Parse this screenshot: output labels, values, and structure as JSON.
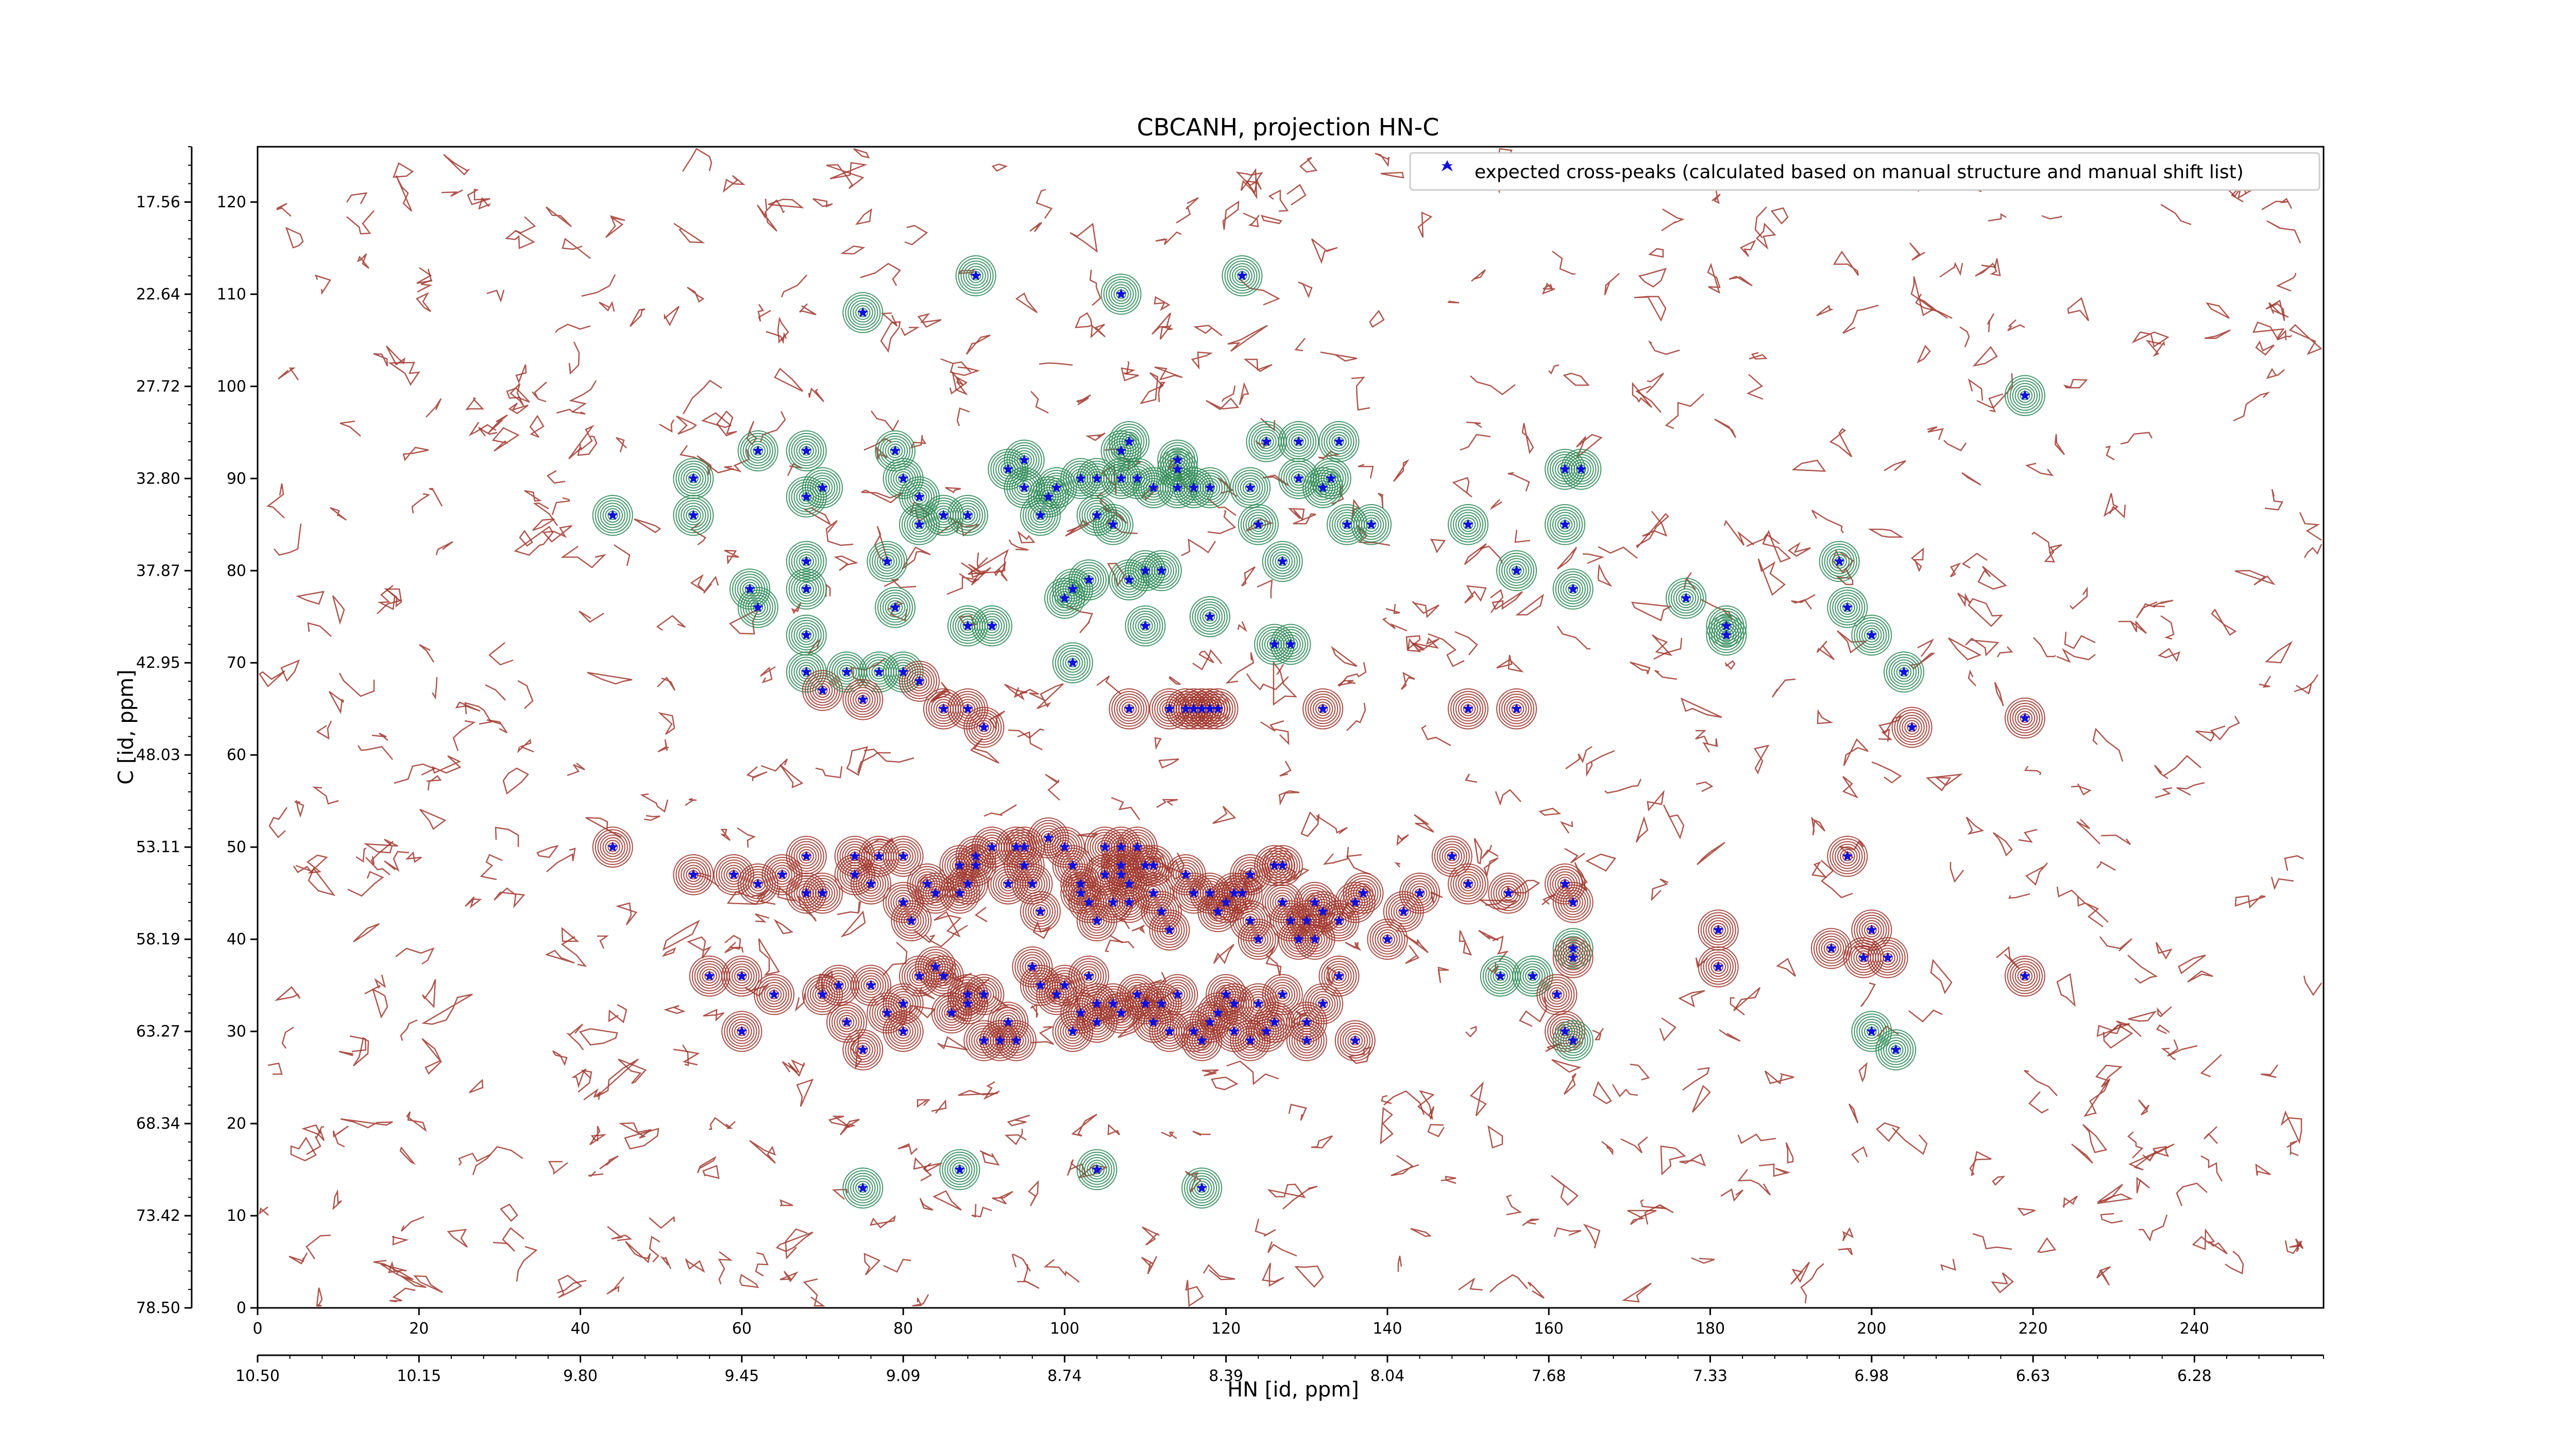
{
  "chart_data": {
    "type": "scatter",
    "title": "CBCANH, projection HN-C",
    "xlabel": "HN [id, ppm]",
    "ylabel": "C [id, ppm]",
    "x_index_ticks": [
      "0",
      "20",
      "40",
      "60",
      "80",
      "100",
      "120",
      "140",
      "160",
      "180",
      "200",
      "220",
      "240"
    ],
    "x_ppm_ticks": [
      "10.50",
      "10.15",
      "9.80",
      "9.45",
      "9.09",
      "8.74",
      "8.39",
      "8.04",
      "7.68",
      "7.33",
      "6.98",
      "6.63",
      "6.28"
    ],
    "y_index_ticks": [
      "0",
      "10",
      "20",
      "30",
      "40",
      "50",
      "60",
      "70",
      "80",
      "90",
      "100",
      "110",
      "120"
    ],
    "y_ppm_ticks": [
      "78.50",
      "73.42",
      "68.34",
      "63.27",
      "58.19",
      "53.11",
      "48.03",
      "42.95",
      "37.87",
      "32.80",
      "27.72",
      "22.64",
      "17.56"
    ],
    "xlim": [
      0,
      256
    ],
    "ylim": [
      0,
      126
    ],
    "grid": false,
    "legend_position": "top-right",
    "colors": {
      "peaks": "#1010dd",
      "positive_contour": "#2e8b57",
      "negative_contour": "#a0362c",
      "axes": "#000000"
    },
    "series": [
      {
        "name": "expected cross-peaks (calculated based on manual structure and manual shift list)",
        "marker": "star",
        "points": [
          [
            44,
            86
          ],
          [
            54,
            86
          ],
          [
            54,
            90
          ],
          [
            62,
            93
          ],
          [
            68,
            93
          ],
          [
            68,
            88
          ],
          [
            70,
            89
          ],
          [
            75,
            108
          ],
          [
            61,
            78
          ],
          [
            62,
            76
          ],
          [
            68,
            78
          ],
          [
            68,
            81
          ],
          [
            68,
            73
          ],
          [
            68,
            69
          ],
          [
            70,
            67
          ],
          [
            73,
            69
          ],
          [
            77,
            69
          ],
          [
            75,
            66
          ],
          [
            78,
            81
          ],
          [
            79,
            76
          ],
          [
            80,
            69
          ],
          [
            79,
            93
          ],
          [
            80,
            90
          ],
          [
            82,
            88
          ],
          [
            82,
            85
          ],
          [
            85,
            86
          ],
          [
            88,
            86
          ],
          [
            82,
            68
          ],
          [
            85,
            65
          ],
          [
            88,
            65
          ],
          [
            90,
            63
          ],
          [
            88,
            74
          ],
          [
            91,
            74
          ],
          [
            89,
            112
          ],
          [
            93,
            91
          ],
          [
            95,
            92
          ],
          [
            95,
            89
          ],
          [
            97,
            86
          ],
          [
            98,
            88
          ],
          [
            99,
            89
          ],
          [
            100,
            77
          ],
          [
            101,
            78
          ],
          [
            101,
            70
          ],
          [
            103,
            79
          ],
          [
            102,
            90
          ],
          [
            104,
            90
          ],
          [
            104,
            86
          ],
          [
            106,
            85
          ],
          [
            107,
            90
          ],
          [
            107,
            93
          ],
          [
            108,
            94
          ],
          [
            107,
            110
          ],
          [
            109,
            90
          ],
          [
            108,
            79
          ],
          [
            110,
            80
          ],
          [
            112,
            80
          ],
          [
            110,
            74
          ],
          [
            111,
            89
          ],
          [
            114,
            89
          ],
          [
            114,
            91
          ],
          [
            114,
            92
          ],
          [
            116,
            89
          ],
          [
            118,
            89
          ],
          [
            118,
            75
          ],
          [
            123,
            89
          ],
          [
            124,
            85
          ],
          [
            125,
            94
          ],
          [
            127,
            81
          ],
          [
            126,
            72
          ],
          [
            128,
            72
          ],
          [
            122,
            112
          ],
          [
            129,
            94
          ],
          [
            129,
            90
          ],
          [
            132,
            89
          ],
          [
            133,
            90
          ],
          [
            134,
            94
          ],
          [
            135,
            85
          ],
          [
            138,
            85
          ],
          [
            108,
            65
          ],
          [
            113,
            65
          ],
          [
            115,
            65
          ],
          [
            116,
            65
          ],
          [
            117,
            65
          ],
          [
            118,
            65
          ],
          [
            119,
            65
          ],
          [
            132,
            65
          ],
          [
            150,
            65
          ],
          [
            156,
            65
          ],
          [
            150,
            85
          ],
          [
            156,
            80
          ],
          [
            162,
            91
          ],
          [
            164,
            91
          ],
          [
            162,
            85
          ],
          [
            163,
            78
          ],
          [
            177,
            77
          ],
          [
            182,
            74
          ],
          [
            182,
            73
          ],
          [
            196,
            81
          ],
          [
            197,
            76
          ],
          [
            200,
            73
          ],
          [
            204,
            69
          ],
          [
            205,
            63
          ],
          [
            219,
            64
          ],
          [
            219,
            99
          ],
          [
            44,
            50
          ],
          [
            54,
            47
          ],
          [
            59,
            47
          ],
          [
            62,
            46
          ],
          [
            65,
            47
          ],
          [
            68,
            45
          ],
          [
            70,
            45
          ],
          [
            74,
            47
          ],
          [
            76,
            46
          ],
          [
            68,
            49
          ],
          [
            74,
            49
          ],
          [
            77,
            49
          ],
          [
            80,
            49
          ],
          [
            80,
            44
          ],
          [
            81,
            42
          ],
          [
            83,
            46
          ],
          [
            84,
            45
          ],
          [
            87,
            48
          ],
          [
            87,
            45
          ],
          [
            88,
            46
          ],
          [
            89,
            48
          ],
          [
            89,
            49
          ],
          [
            91,
            50
          ],
          [
            93,
            46
          ],
          [
            94,
            50
          ],
          [
            95,
            50
          ],
          [
            95,
            48
          ],
          [
            96,
            46
          ],
          [
            97,
            43
          ],
          [
            98,
            51
          ],
          [
            100,
            50
          ],
          [
            101,
            48
          ],
          [
            102,
            46
          ],
          [
            102,
            45
          ],
          [
            103,
            44
          ],
          [
            104,
            42
          ],
          [
            105,
            50
          ],
          [
            105,
            47
          ],
          [
            106,
            44
          ],
          [
            107,
            50
          ],
          [
            107,
            48
          ],
          [
            107,
            47
          ],
          [
            108,
            46
          ],
          [
            108,
            44
          ],
          [
            109,
            50
          ],
          [
            110,
            48
          ],
          [
            111,
            48
          ],
          [
            111,
            45
          ],
          [
            112,
            43
          ],
          [
            113,
            41
          ],
          [
            115,
            47
          ],
          [
            116,
            45
          ],
          [
            118,
            45
          ],
          [
            119,
            43
          ],
          [
            120,
            44
          ],
          [
            121,
            45
          ],
          [
            122,
            45
          ],
          [
            123,
            47
          ],
          [
            123,
            42
          ],
          [
            124,
            40
          ],
          [
            126,
            48
          ],
          [
            127,
            48
          ],
          [
            127,
            44
          ],
          [
            128,
            42
          ],
          [
            129,
            40
          ],
          [
            130,
            42
          ],
          [
            131,
            44
          ],
          [
            131,
            40
          ],
          [
            132,
            43
          ],
          [
            134,
            42
          ],
          [
            136,
            44
          ],
          [
            137,
            45
          ],
          [
            140,
            40
          ],
          [
            142,
            43
          ],
          [
            144,
            45
          ],
          [
            148,
            49
          ],
          [
            150,
            46
          ],
          [
            155,
            45
          ],
          [
            162,
            46
          ],
          [
            163,
            44
          ],
          [
            163,
            39
          ],
          [
            163,
            38
          ],
          [
            181,
            41
          ],
          [
            181,
            37
          ],
          [
            195,
            39
          ],
          [
            197,
            49
          ],
          [
            199,
            38
          ],
          [
            200,
            41
          ],
          [
            202,
            38
          ],
          [
            56,
            36
          ],
          [
            60,
            36
          ],
          [
            60,
            30
          ],
          [
            64,
            34
          ],
          [
            70,
            34
          ],
          [
            72,
            35
          ],
          [
            73,
            31
          ],
          [
            75,
            28
          ],
          [
            76,
            35
          ],
          [
            78,
            32
          ],
          [
            80,
            33
          ],
          [
            80,
            30
          ],
          [
            82,
            36
          ],
          [
            84,
            37
          ],
          [
            85,
            36
          ],
          [
            86,
            32
          ],
          [
            88,
            33
          ],
          [
            88,
            34
          ],
          [
            90,
            34
          ],
          [
            90,
            29
          ],
          [
            92,
            29
          ],
          [
            93,
            31
          ],
          [
            94,
            29
          ],
          [
            96,
            37
          ],
          [
            97,
            35
          ],
          [
            99,
            34
          ],
          [
            100,
            35
          ],
          [
            101,
            30
          ],
          [
            102,
            32
          ],
          [
            103,
            36
          ],
          [
            104,
            33
          ],
          [
            104,
            31
          ],
          [
            106,
            33
          ],
          [
            107,
            32
          ],
          [
            109,
            34
          ],
          [
            110,
            33
          ],
          [
            111,
            31
          ],
          [
            112,
            33
          ],
          [
            113,
            30
          ],
          [
            114,
            34
          ],
          [
            116,
            30
          ],
          [
            117,
            29
          ],
          [
            118,
            31
          ],
          [
            119,
            32
          ],
          [
            120,
            34
          ],
          [
            121,
            33
          ],
          [
            121,
            30
          ],
          [
            123,
            29
          ],
          [
            124,
            33
          ],
          [
            125,
            30
          ],
          [
            126,
            31
          ],
          [
            127,
            34
          ],
          [
            130,
            31
          ],
          [
            130,
            29
          ],
          [
            132,
            33
          ],
          [
            134,
            36
          ],
          [
            136,
            29
          ],
          [
            154,
            36
          ],
          [
            158,
            36
          ],
          [
            161,
            34
          ],
          [
            162,
            30
          ],
          [
            163,
            29
          ],
          [
            200,
            30
          ],
          [
            203,
            28
          ],
          [
            219,
            36
          ],
          [
            75,
            13
          ],
          [
            87,
            15
          ],
          [
            104,
            15
          ],
          [
            117,
            13
          ]
        ]
      }
    ]
  }
}
